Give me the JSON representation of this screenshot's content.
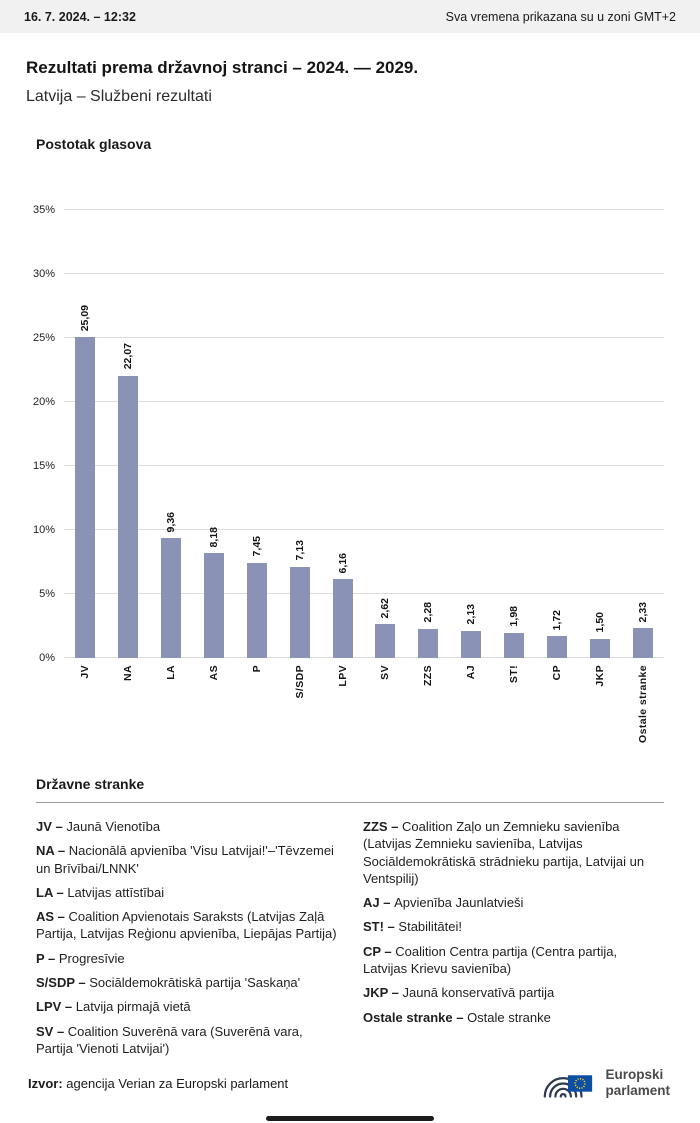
{
  "header": {
    "datetime": "16. 7. 2024. – 12:32",
    "timezone_note": "Sva vremena prikazana su u zoni GMT+2"
  },
  "title": "Rezultati prema državnoj stranci – 2024. — 2029.",
  "subtitle": "Latvija – Službeni rezultati",
  "chart_data": {
    "type": "bar",
    "title": "Postotak glasova",
    "categories": [
      "JV",
      "NA",
      "LA",
      "AS",
      "P",
      "S/SDP",
      "LPV",
      "SV",
      "ZZS",
      "AJ",
      "ST!",
      "CP",
      "JKP",
      "Ostale stranke"
    ],
    "values": [
      25.09,
      22.07,
      9.36,
      8.18,
      7.45,
      7.13,
      6.16,
      2.62,
      2.28,
      2.13,
      1.98,
      1.72,
      1.5,
      2.33
    ],
    "value_labels": [
      "25,09",
      "22,07",
      "9,36",
      "8,18",
      "7,45",
      "7,13",
      "6,16",
      "2,62",
      "2,28",
      "2,13",
      "1,98",
      "1,72",
      "1,50",
      "2,33"
    ],
    "xlabel": "",
    "ylabel": "",
    "ylim": [
      0,
      35
    ],
    "yticks": [
      "0%",
      "5%",
      "10%",
      "15%",
      "20%",
      "25%",
      "30%",
      "35%"
    ],
    "grid": true,
    "legend_position": "none",
    "bar_color": "#8a93b6"
  },
  "legend": {
    "heading": "Državne stranke",
    "separator": " – ",
    "columns": [
      [
        {
          "term": "JV",
          "desc": "Jaunā Vienotība"
        },
        {
          "term": "NA",
          "desc": "Nacionālā apvienība 'Visu Latvijai!'–'Tēvzemei un Brīvībai/LNNK'"
        },
        {
          "term": "LA",
          "desc": "Latvijas attīstībai"
        },
        {
          "term": "AS",
          "desc": "Coalition Apvienotais Saraksts (Latvijas Zaļā Partija, Latvijas Reģionu apvienība, Liepājas Partija)"
        },
        {
          "term": "P",
          "desc": "Progresīvie"
        },
        {
          "term": "S/SDP",
          "desc": "Sociāldemokrātiskā partija 'Saskaņa'"
        },
        {
          "term": "LPV",
          "desc": "Latvija pirmajā vietā"
        },
        {
          "term": "SV",
          "desc": "Coalition Suverēnā vara (Suverēnā vara, Partija 'Vienoti Latvijai')"
        }
      ],
      [
        {
          "term": "ZZS",
          "desc": "Coalition Zaļo un Zemnieku savienība (Latvijas Zemnieku savienība, Latvijas Sociāldemokrātiskā strādnieku partija, Latvijai un Ventspilij)"
        },
        {
          "term": "AJ",
          "desc": "Apvienība Jaunlatvieši"
        },
        {
          "term": "ST!",
          "desc": "Stabilitātei!"
        },
        {
          "term": "CP",
          "desc": "Coalition Centra partija (Centra partija, Latvijas Krievu savienība)"
        },
        {
          "term": "JKP",
          "desc": "Jaunā konservatīvā partija"
        },
        {
          "term": "Ostale stranke",
          "desc": "Ostale stranke"
        }
      ]
    ]
  },
  "footer": {
    "source_label": "Izvor:",
    "source_text": " agencija Verian za Europski parlament",
    "logo_line1": "Europski",
    "logo_line2": "parlament",
    "logo_colors": {
      "mark": "#2c3a52",
      "flag": "#0b4ea2",
      "stars": "#ffd617"
    }
  }
}
